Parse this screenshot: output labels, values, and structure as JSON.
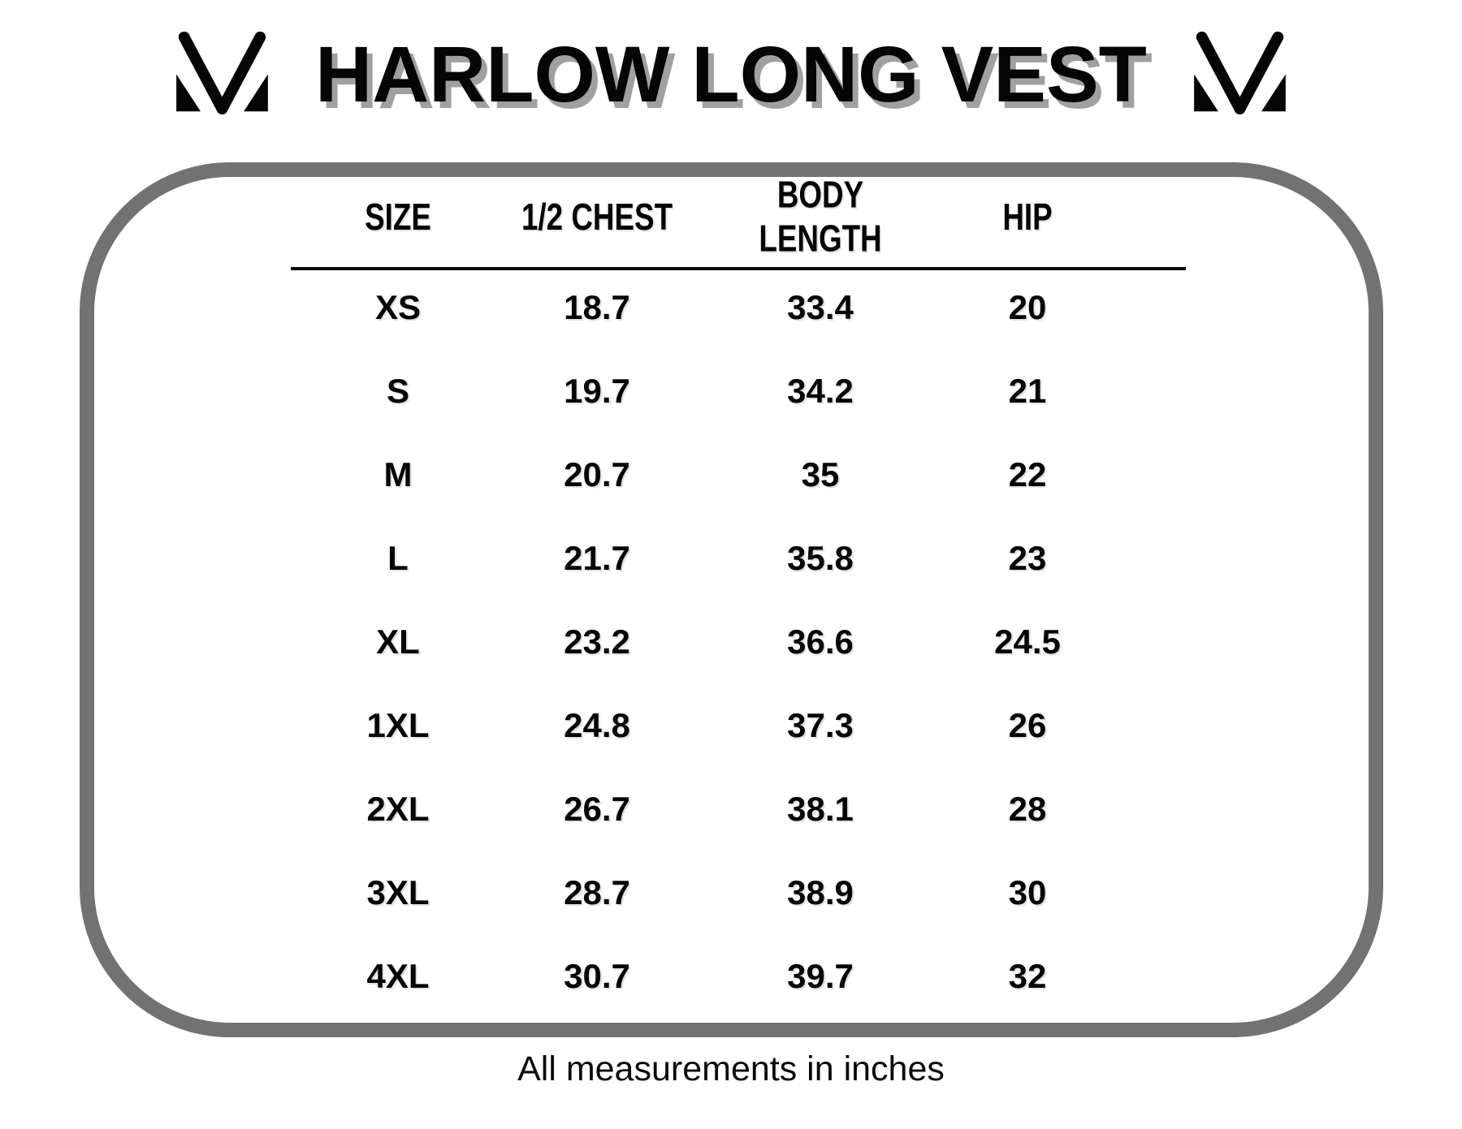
{
  "title": "HARLOW LONG VEST",
  "brand_logo_icon": "m-chevron-logo",
  "colors": {
    "text_black": "#050505",
    "box_border_gray": "#727272",
    "title_shadow_gray": "#a0a0a0",
    "background": "#ffffff"
  },
  "chart_data": {
    "type": "table",
    "title": "HARLOW LONG VEST",
    "columns": [
      "SIZE",
      "1/2 CHEST",
      "BODY LENGTH",
      "HIP"
    ],
    "rows": [
      [
        "XS",
        "18.7",
        "33.4",
        "20"
      ],
      [
        "S",
        "19.7",
        "34.2",
        "21"
      ],
      [
        "M",
        "20.7",
        "35",
        "22"
      ],
      [
        "L",
        "21.7",
        "35.8",
        "23"
      ],
      [
        "XL",
        "23.2",
        "36.6",
        "24.5"
      ],
      [
        "1XL",
        "24.8",
        "37.3",
        "26"
      ],
      [
        "2XL",
        "26.7",
        "38.1",
        "28"
      ],
      [
        "3XL",
        "28.7",
        "38.9",
        "30"
      ],
      [
        "4XL",
        "30.7",
        "39.7",
        "32"
      ]
    ],
    "note": "All measurements in inches",
    "layout_hints": {
      "header_rule": true,
      "units": "inches"
    }
  }
}
